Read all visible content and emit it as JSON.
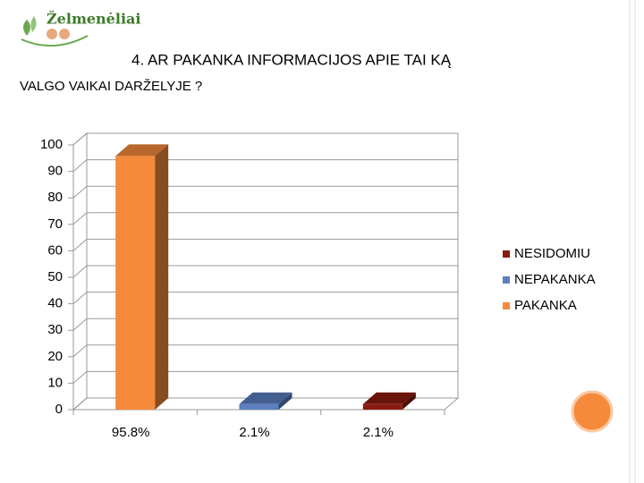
{
  "header": {
    "logo": "Želmenėliai",
    "title_line1": "4. AR PAKANKA INFORMACIJOS APIE TAI KĄ",
    "title_line2": "VALGO VAIKAI DARŽELYJE ?"
  },
  "chart_data": {
    "type": "bar3d",
    "categories": [
      "95.8%",
      "2.1%",
      "2.1%"
    ],
    "series": [
      {
        "name": "NESIDOMIU",
        "color": "#8b1a0e",
        "values": [
          null,
          null,
          2.1
        ]
      },
      {
        "name": "NEPAKANKA",
        "color": "#5b7fbf",
        "values": [
          null,
          2.1,
          null
        ]
      },
      {
        "name": "PAKANKA",
        "color": "#f58a3a",
        "values": [
          95.8,
          null,
          null
        ]
      }
    ],
    "ylim": [
      0,
      100
    ],
    "yticks": [
      0,
      10,
      20,
      30,
      40,
      50,
      60,
      70,
      80,
      90,
      100
    ],
    "grid": true,
    "legend": "right"
  }
}
